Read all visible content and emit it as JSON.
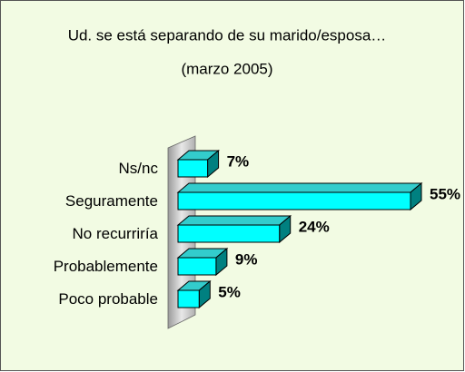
{
  "chart_data": {
    "type": "bar3d_horizontal",
    "title": "Ud. se está separando de su marido/esposa…",
    "subtitle": "(marzo 2005)",
    "categories": [
      "Ns/nc",
      "Seguramente",
      "No recurriría",
      "Probablemente",
      "Poco probable"
    ],
    "values": [
      7,
      55,
      24,
      9,
      5
    ],
    "value_labels": [
      "7%",
      "55%",
      "24%",
      "9%",
      "5%"
    ],
    "xlim": [
      0,
      55
    ],
    "color": "#00ffff"
  }
}
